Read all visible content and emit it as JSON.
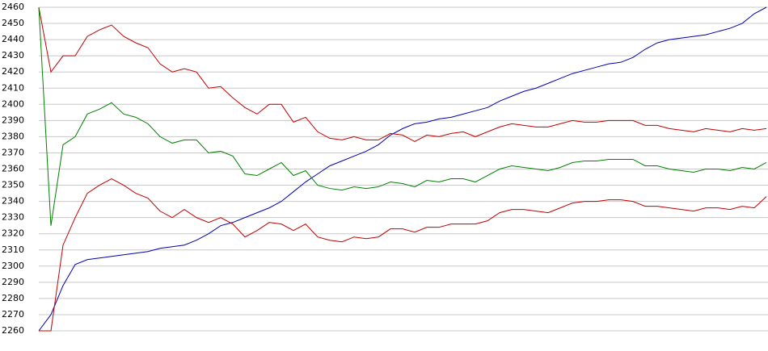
{
  "chart_data": {
    "type": "line",
    "ylim": [
      2260,
      2460
    ],
    "yticks": [
      2260,
      2270,
      2280,
      2290,
      2300,
      2310,
      2320,
      2330,
      2340,
      2350,
      2360,
      2370,
      2380,
      2390,
      2400,
      2410,
      2420,
      2430,
      2440,
      2450,
      2460
    ],
    "grid": true,
    "series": [
      {
        "color": "#0000b0",
        "values": [
          2260,
          2270,
          2288,
          2301,
          2304,
          2305,
          2306,
          2307,
          2308,
          2309,
          2311,
          2312,
          2313,
          2316,
          2320,
          2325,
          2327,
          2330,
          2333,
          2336,
          2340,
          2346,
          2352,
          2357,
          2362,
          2365,
          2368,
          2371,
          2375,
          2381,
          2385,
          2388,
          2389,
          2391,
          2392,
          2394,
          2396,
          2398,
          2402,
          2405,
          2408,
          2410,
          2413,
          2416,
          2419,
          2421,
          2423,
          2425,
          2426,
          2429,
          2434,
          2438,
          2440,
          2441,
          2442,
          2443,
          2445,
          2447,
          2450,
          2456,
          2460
        ]
      },
      {
        "color": "#c00000",
        "values": [
          2460,
          2420,
          2430,
          2430,
          2442,
          2446,
          2449,
          2442,
          2438,
          2435,
          2425,
          2420,
          2422,
          2420,
          2410,
          2411,
          2404,
          2398,
          2394,
          2400,
          2400,
          2389,
          2392,
          2383,
          2379,
          2378,
          2380,
          2378,
          2378,
          2382,
          2381,
          2377,
          2381,
          2380,
          2382,
          2383,
          2380,
          2383,
          2386,
          2388,
          2387,
          2386,
          2386,
          2388,
          2390,
          2389,
          2389,
          2390,
          2390,
          2390,
          2387,
          2387,
          2385,
          2384,
          2383,
          2385,
          2384,
          2383,
          2385,
          2384,
          2385
        ]
      },
      {
        "color": "#008000",
        "values": [
          2460,
          2325,
          2375,
          2380,
          2394,
          2397,
          2401,
          2394,
          2392,
          2388,
          2380,
          2376,
          2378,
          2378,
          2370,
          2371,
          2368,
          2357,
          2356,
          2360,
          2364,
          2356,
          2359,
          2350,
          2348,
          2347,
          2349,
          2348,
          2349,
          2352,
          2351,
          2349,
          2353,
          2352,
          2354,
          2354,
          2352,
          2356,
          2360,
          2362,
          2361,
          2360,
          2359,
          2361,
          2364,
          2365,
          2365,
          2366,
          2366,
          2366,
          2362,
          2362,
          2360,
          2359,
          2358,
          2360,
          2360,
          2359,
          2361,
          2360,
          2364
        ]
      },
      {
        "color": "#c00000",
        "values": [
          2260,
          2260,
          2313,
          2330,
          2345,
          2350,
          2354,
          2350,
          2345,
          2342,
          2334,
          2330,
          2335,
          2330,
          2327,
          2330,
          2326,
          2318,
          2322,
          2327,
          2326,
          2322,
          2326,
          2318,
          2316,
          2315,
          2318,
          2317,
          2318,
          2323,
          2323,
          2321,
          2324,
          2324,
          2326,
          2326,
          2326,
          2328,
          2333,
          2335,
          2335,
          2334,
          2333,
          2336,
          2339,
          2340,
          2340,
          2341,
          2341,
          2340,
          2337,
          2337,
          2336,
          2335,
          2334,
          2336,
          2336,
          2335,
          2337,
          2336,
          2343
        ]
      }
    ]
  }
}
